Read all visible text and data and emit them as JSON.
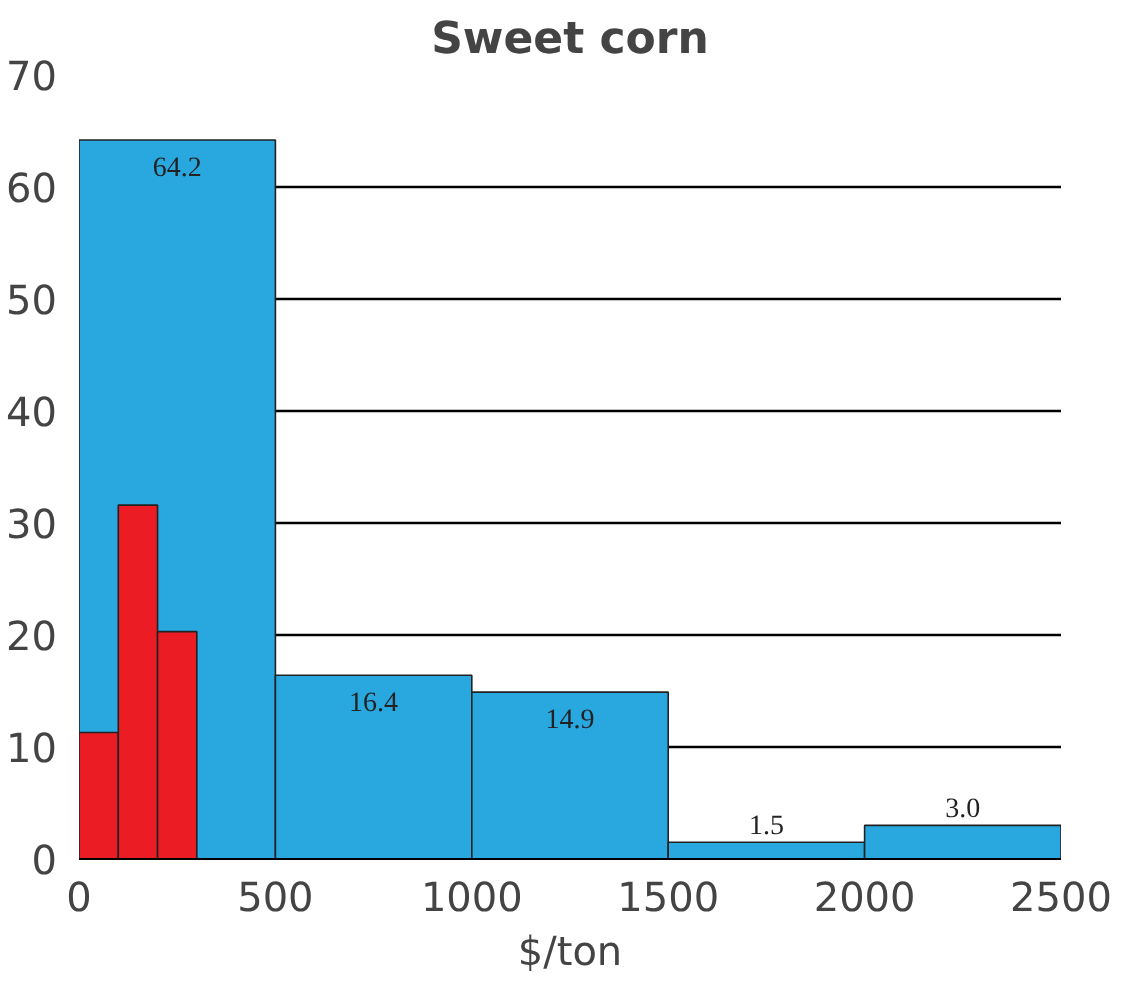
{
  "chart_data": {
    "type": "histogram",
    "title": "Sweet corn",
    "xlabel": "$/ton",
    "bins": [
      0,
      500,
      1000,
      1500,
      2000,
      2500
    ],
    "series": [
      {
        "values": [
          64.2,
          16.4,
          14.9,
          1.5,
          3.0
        ],
        "color": "#29a8e0",
        "value_labels": [
          "64.2",
          "16.4",
          "14.9",
          "1.5",
          "3.0"
        ]
      },
      {
        "bins": [
          0,
          100,
          200,
          300
        ],
        "values": [
          11.3,
          31.6,
          20.3
        ],
        "color": "#ec1c24"
      }
    ],
    "xlim": [
      0,
      2500
    ],
    "xticks": [
      0,
      500,
      1000,
      1500,
      2000,
      2500
    ],
    "ylim": [
      0,
      70
    ],
    "yticks": [
      0,
      10,
      20,
      30,
      40,
      50,
      60,
      70
    ],
    "grid": "y"
  }
}
